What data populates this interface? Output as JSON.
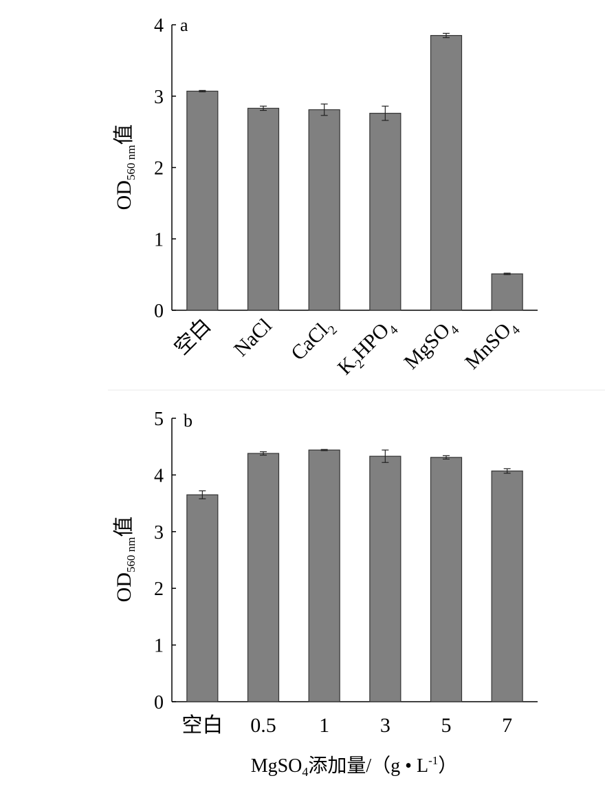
{
  "chart_data": [
    {
      "type": "bar",
      "panel_label": "a",
      "ylabel": {
        "main": "OD",
        "sub": "560 nm",
        "suffix": "值"
      },
      "xlabel": "",
      "ylim": [
        0,
        4
      ],
      "yticks": [
        "0",
        "1",
        "2",
        "3",
        "4"
      ],
      "categories": [
        {
          "base": "空白",
          "sub": ""
        },
        {
          "base": "NaCl",
          "sub": ""
        },
        {
          "base": "CaCl",
          "sub": "2"
        },
        {
          "base": "K",
          "sub": "2",
          "rest": "HPO",
          "sub2": "4"
        },
        {
          "base": "MgSO",
          "sub": "4"
        },
        {
          "base": "MnSO",
          "sub": "4"
        }
      ],
      "values": [
        3.07,
        2.83,
        2.81,
        2.76,
        3.85,
        0.51
      ],
      "errors": [
        0.01,
        0.03,
        0.08,
        0.1,
        0.03,
        0.01
      ],
      "bar_color": "#808080"
    },
    {
      "type": "bar",
      "panel_label": "b",
      "ylabel": {
        "main": "OD",
        "sub": "560 nm",
        "suffix": "值"
      },
      "xlabel": {
        "main": "MgSO",
        "sub": "4",
        "rest": "添加量/（g • L",
        "sup": "-1",
        "end": "）"
      },
      "ylim": [
        0,
        5
      ],
      "yticks": [
        "0",
        "1",
        "2",
        "3",
        "4",
        "5"
      ],
      "categories": [
        {
          "base": "空白",
          "sub": ""
        },
        {
          "base": "0.5",
          "sub": ""
        },
        {
          "base": "1",
          "sub": ""
        },
        {
          "base": "3",
          "sub": ""
        },
        {
          "base": "5",
          "sub": ""
        },
        {
          "base": "7",
          "sub": ""
        }
      ],
      "values": [
        3.65,
        4.38,
        4.44,
        4.33,
        4.31,
        4.07
      ],
      "errors": [
        0.07,
        0.03,
        0.01,
        0.11,
        0.03,
        0.04
      ],
      "bar_color": "#808080"
    }
  ]
}
